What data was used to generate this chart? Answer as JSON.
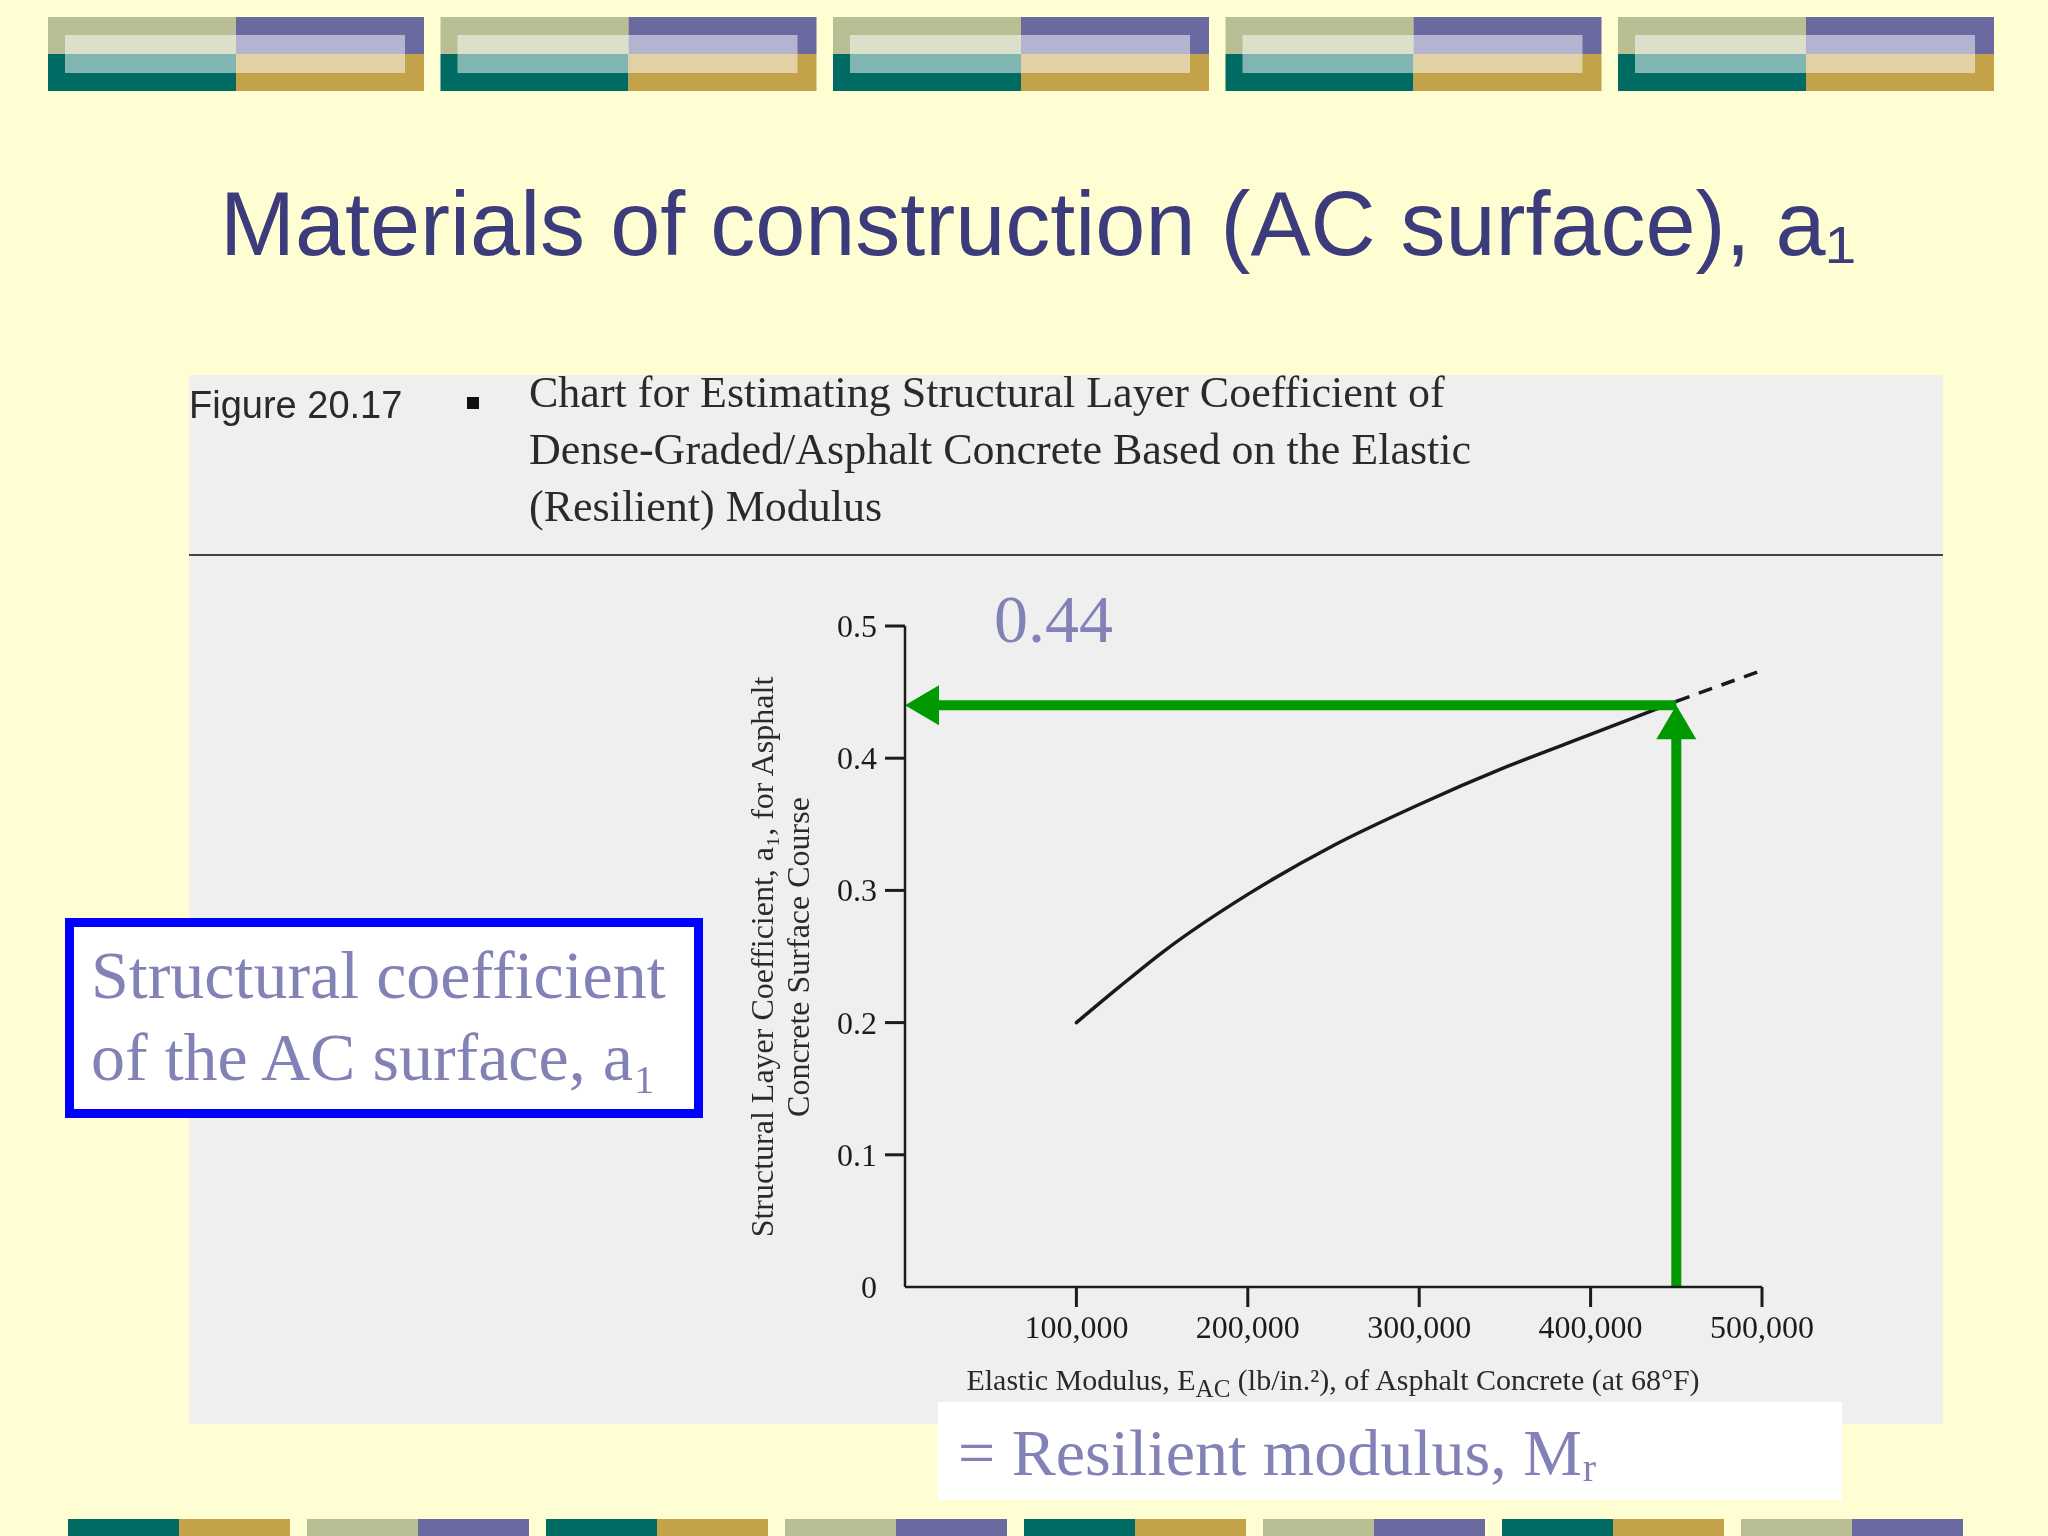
{
  "chart_data": {
    "type": "line",
    "title": "Materials of construction (AC surface), a₁",
    "subtitle": "Chart for Estimating Structural Layer Coefficient of Dense-Graded/Asphalt Concrete Based on the Elastic (Resilient) Modulus",
    "xlabel": "Elastic Modulus, E$_{AC}$ (lb/in.²), of Asphalt Concrete (at 68°F)",
    "ylabel": "Structural Layer Coefficient, a₁, for Asphalt Concrete Surface Course",
    "annotations": [
      "Figure 20.17",
      "Structural coefficient of the AC surface, a₁",
      "= Resilient modulus, Mᵣ"
    ],
    "series": [
      {
        "color": "#1a1a1a",
        "x": [
          100000,
          125000,
          150000,
          200000,
          250000,
          300000,
          350000,
          400000,
          450000
        ],
        "values": [
          0.2,
          0.227,
          0.253,
          0.297,
          0.334,
          0.365,
          0.393,
          0.418,
          0.443
        ]
      },
      {
        "color": "#1a1a1a",
        "line_style": "dashed",
        "x": [
          450000,
          499000
        ],
        "values": [
          0.443,
          0.466
        ]
      }
    ],
    "xlim": [
      0,
      500000
    ],
    "xticks": [
      {
        "value": 100000,
        "label": "100,000"
      },
      {
        "value": 200000,
        "label": "200,000"
      },
      {
        "value": 300000,
        "label": "300,000"
      },
      {
        "value": 400000,
        "label": "400,000"
      },
      {
        "value": 500000,
        "label": "500,000"
      }
    ],
    "ylim": [
      0,
      0.5
    ],
    "yticks": [
      0,
      0.1,
      0.2,
      0.3,
      0.4,
      0.5
    ],
    "ref_lines": [
      {
        "axis": "y",
        "value": 0.44,
        "label": "0.44",
        "color": "#009900"
      },
      {
        "axis": "x",
        "value": 450000,
        "color": "#009900"
      }
    ]
  }
}
